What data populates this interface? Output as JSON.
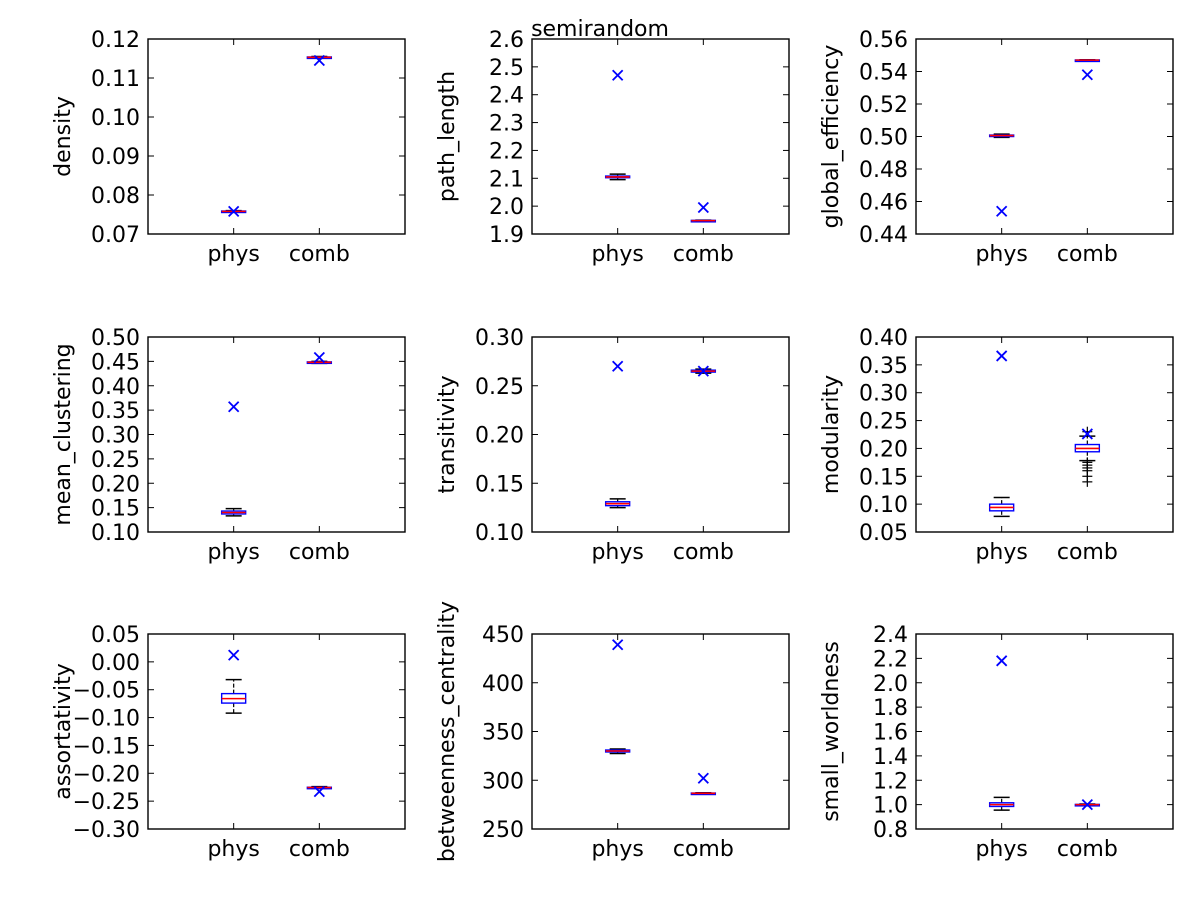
{
  "figure": {
    "suptitle": "semirandom"
  },
  "chart_data": [
    {
      "type": "box",
      "title": "",
      "ylabel": "density",
      "categories": [
        "phys",
        "comb"
      ],
      "ylim": [
        0.07,
        0.12
      ],
      "yticks": [
        0.07,
        0.08,
        0.09,
        0.1,
        0.11,
        0.12
      ],
      "ytick_labels": [
        "0.07",
        "0.08",
        "0.09",
        "0.10",
        "0.11",
        "0.12"
      ],
      "boxes": [
        {
          "category": "phys",
          "whisker_low": 0.0756,
          "q1": 0.0757,
          "median": 0.0758,
          "q3": 0.0759,
          "whisker_high": 0.076,
          "fliers": []
        },
        {
          "category": "comb",
          "whisker_low": 0.1151,
          "q1": 0.1152,
          "median": 0.1153,
          "q3": 0.1154,
          "whisker_high": 0.1155,
          "fliers": []
        }
      ],
      "reference_points": [
        {
          "category": "phys",
          "value": 0.0758
        },
        {
          "category": "comb",
          "value": 0.1145
        }
      ]
    },
    {
      "type": "box",
      "title": "",
      "ylabel": "path_length",
      "categories": [
        "phys",
        "comb"
      ],
      "ylim": [
        1.9,
        2.6
      ],
      "yticks": [
        1.9,
        2.0,
        2.1,
        2.2,
        2.3,
        2.4,
        2.5,
        2.6
      ],
      "ytick_labels": [
        "1.9",
        "2.0",
        "2.1",
        "2.2",
        "2.3",
        "2.4",
        "2.5",
        "2.6"
      ],
      "boxes": [
        {
          "category": "phys",
          "whisker_low": 2.095,
          "q1": 2.102,
          "median": 2.105,
          "q3": 2.108,
          "whisker_high": 2.115,
          "fliers": []
        },
        {
          "category": "comb",
          "whisker_low": 1.946,
          "q1": 1.947,
          "median": 1.948,
          "q3": 1.949,
          "whisker_high": 1.95,
          "fliers": []
        }
      ],
      "reference_points": [
        {
          "category": "phys",
          "value": 2.47
        },
        {
          "category": "comb",
          "value": 1.995
        }
      ]
    },
    {
      "type": "box",
      "title": "",
      "ylabel": "global_efficiency",
      "categories": [
        "phys",
        "comb"
      ],
      "ylim": [
        0.44,
        0.56
      ],
      "yticks": [
        0.44,
        0.46,
        0.48,
        0.5,
        0.52,
        0.54,
        0.56
      ],
      "ytick_labels": [
        "0.44",
        "0.46",
        "0.48",
        "0.50",
        "0.52",
        "0.54",
        "0.56"
      ],
      "boxes": [
        {
          "category": "phys",
          "whisker_low": 0.4995,
          "q1": 0.5003,
          "median": 0.5006,
          "q3": 0.5009,
          "whisker_high": 0.5015,
          "fliers": []
        },
        {
          "category": "comb",
          "whisker_low": 0.5468,
          "q1": 0.5469,
          "median": 0.547,
          "q3": 0.5471,
          "whisker_high": 0.5472,
          "fliers": []
        }
      ],
      "reference_points": [
        {
          "category": "phys",
          "value": 0.454
        },
        {
          "category": "comb",
          "value": 0.538
        }
      ]
    },
    {
      "type": "box",
      "title": "",
      "ylabel": "mean_clustering",
      "categories": [
        "phys",
        "comb"
      ],
      "ylim": [
        0.1,
        0.5
      ],
      "yticks": [
        0.1,
        0.15,
        0.2,
        0.25,
        0.3,
        0.35,
        0.4,
        0.45,
        0.5
      ],
      "ytick_labels": [
        "0.10",
        "0.15",
        "0.20",
        "0.25",
        "0.30",
        "0.35",
        "0.40",
        "0.45",
        "0.50"
      ],
      "boxes": [
        {
          "category": "phys",
          "whisker_low": 0.133,
          "q1": 0.137,
          "median": 0.14,
          "q3": 0.143,
          "whisker_high": 0.148,
          "fliers": []
        },
        {
          "category": "comb",
          "whisker_low": 0.446,
          "q1": 0.447,
          "median": 0.448,
          "q3": 0.449,
          "whisker_high": 0.45,
          "fliers": []
        }
      ],
      "reference_points": [
        {
          "category": "phys",
          "value": 0.357
        },
        {
          "category": "comb",
          "value": 0.458
        }
      ]
    },
    {
      "type": "box",
      "title": "",
      "ylabel": "transitivity",
      "categories": [
        "phys",
        "comb"
      ],
      "ylim": [
        0.1,
        0.3
      ],
      "yticks": [
        0.1,
        0.15,
        0.2,
        0.25,
        0.3
      ],
      "ytick_labels": [
        "0.10",
        "0.15",
        "0.20",
        "0.25",
        "0.30"
      ],
      "boxes": [
        {
          "category": "phys",
          "whisker_low": 0.125,
          "q1": 0.127,
          "median": 0.129,
          "q3": 0.131,
          "whisker_high": 0.134,
          "fliers": []
        },
        {
          "category": "comb",
          "whisker_low": 0.263,
          "q1": 0.264,
          "median": 0.265,
          "q3": 0.266,
          "whisker_high": 0.267,
          "fliers": []
        }
      ],
      "reference_points": [
        {
          "category": "phys",
          "value": 0.27
        },
        {
          "category": "comb",
          "value": 0.265
        }
      ]
    },
    {
      "type": "box",
      "title": "",
      "ylabel": "modularity",
      "categories": [
        "phys",
        "comb"
      ],
      "ylim": [
        0.05,
        0.4
      ],
      "yticks": [
        0.05,
        0.1,
        0.15,
        0.2,
        0.25,
        0.3,
        0.35,
        0.4
      ],
      "ytick_labels": [
        "0.05",
        "0.10",
        "0.15",
        "0.20",
        "0.25",
        "0.30",
        "0.35",
        "0.40"
      ],
      "boxes": [
        {
          "category": "phys",
          "whisker_low": 0.078,
          "q1": 0.088,
          "median": 0.094,
          "q3": 0.1,
          "whisker_high": 0.112,
          "fliers": []
        },
        {
          "category": "comb",
          "whisker_low": 0.178,
          "q1": 0.194,
          "median": 0.2,
          "q3": 0.207,
          "whisker_high": 0.222,
          "fliers": [
            0.14,
            0.15,
            0.16,
            0.165,
            0.17,
            0.175,
            0.23
          ]
        }
      ],
      "reference_points": [
        {
          "category": "phys",
          "value": 0.366
        },
        {
          "category": "comb",
          "value": 0.226
        }
      ]
    },
    {
      "type": "box",
      "title": "",
      "ylabel": "assortativity",
      "categories": [
        "phys",
        "comb"
      ],
      "ylim": [
        -0.3,
        0.05
      ],
      "yticks": [
        -0.3,
        -0.25,
        -0.2,
        -0.15,
        -0.1,
        -0.05,
        0.0,
        0.05
      ],
      "ytick_labels": [
        "−0.30",
        "−0.25",
        "−0.20",
        "−0.15",
        "−0.10",
        "−0.05",
        "0.00",
        "0.05"
      ],
      "boxes": [
        {
          "category": "phys",
          "whisker_low": -0.092,
          "q1": -0.074,
          "median": -0.066,
          "q3": -0.057,
          "whisker_high": -0.032,
          "fliers": []
        },
        {
          "category": "comb",
          "whisker_low": -0.227,
          "q1": -0.226,
          "median": -0.2255,
          "q3": -0.225,
          "whisker_high": -0.224,
          "fliers": []
        }
      ],
      "reference_points": [
        {
          "category": "phys",
          "value": 0.012
        },
        {
          "category": "comb",
          "value": -0.233
        }
      ]
    },
    {
      "type": "box",
      "title": "",
      "ylabel": "betweenness_centrality",
      "categories": [
        "phys",
        "comb"
      ],
      "ylim": [
        250,
        450
      ],
      "yticks": [
        250,
        300,
        350,
        400,
        450
      ],
      "ytick_labels": [
        "250",
        "300",
        "350",
        "400",
        "450"
      ],
      "boxes": [
        {
          "category": "phys",
          "whisker_low": 327.5,
          "q1": 329,
          "median": 330,
          "q3": 331,
          "whisker_high": 332,
          "fliers": []
        },
        {
          "category": "comb",
          "whisker_low": 286,
          "q1": 286.3,
          "median": 286.6,
          "q3": 286.9,
          "whisker_high": 287.2,
          "fliers": []
        }
      ],
      "reference_points": [
        {
          "category": "phys",
          "value": 439
        },
        {
          "category": "comb",
          "value": 302
        }
      ]
    },
    {
      "type": "box",
      "title": "",
      "ylabel": "small_worldness",
      "categories": [
        "phys",
        "comb"
      ],
      "ylim": [
        0.8,
        2.4
      ],
      "yticks": [
        0.8,
        1.0,
        1.2,
        1.4,
        1.6,
        1.8,
        2.0,
        2.2,
        2.4
      ],
      "ytick_labels": [
        "0.8",
        "1.0",
        "1.2",
        "1.4",
        "1.6",
        "1.8",
        "2.0",
        "2.2",
        "2.4"
      ],
      "boxes": [
        {
          "category": "phys",
          "whisker_low": 0.955,
          "q1": 0.985,
          "median": 1.0,
          "q3": 1.015,
          "whisker_high": 1.06,
          "fliers": []
        },
        {
          "category": "comb",
          "whisker_low": 0.995,
          "q1": 0.998,
          "median": 1.0,
          "q3": 1.002,
          "whisker_high": 1.005,
          "fliers": []
        }
      ],
      "reference_points": [
        {
          "category": "phys",
          "value": 2.18
        },
        {
          "category": "comb",
          "value": 1.0
        }
      ]
    }
  ],
  "colors": {
    "box": "#0000ff",
    "median": "#ff0000",
    "whisker": "#000000",
    "reference_marker": "#0000ff",
    "axes": "#000000",
    "background": "#ffffff"
  }
}
